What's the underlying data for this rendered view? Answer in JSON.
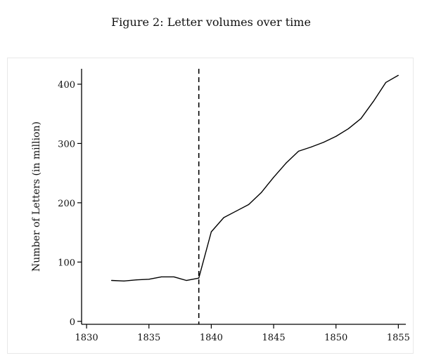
{
  "figure": {
    "title": "Figure 2: Letter volumes over time"
  },
  "chart_data": {
    "type": "line",
    "title": "Figure 2: Letter volumes over time",
    "xlabel": "",
    "ylabel": "Number of Letters (in million)",
    "xlim": [
      1829.6,
      1855.6
    ],
    "ylim": [
      -5,
      426
    ],
    "xticks": [
      1830,
      1835,
      1840,
      1845,
      1850,
      1855
    ],
    "yticks": [
      0,
      100,
      200,
      300,
      400
    ],
    "grid": false,
    "legend": "none",
    "vline": {
      "x": 1839,
      "style": "dashed"
    },
    "series": [
      {
        "x": [
          1832,
          1833,
          1834,
          1835,
          1836,
          1837,
          1838,
          1839,
          1840,
          1841,
          1842,
          1843,
          1844,
          1845,
          1846,
          1847,
          1848,
          1849,
          1850,
          1851,
          1852,
          1853,
          1854,
          1855
        ],
        "values": [
          69,
          68,
          70,
          71,
          75,
          75,
          69,
          73,
          151,
          175,
          186,
          197,
          217,
          243,
          267,
          287,
          294,
          302,
          312,
          325,
          342,
          371,
          403,
          415
        ]
      }
    ],
    "line_color": "#000000"
  }
}
